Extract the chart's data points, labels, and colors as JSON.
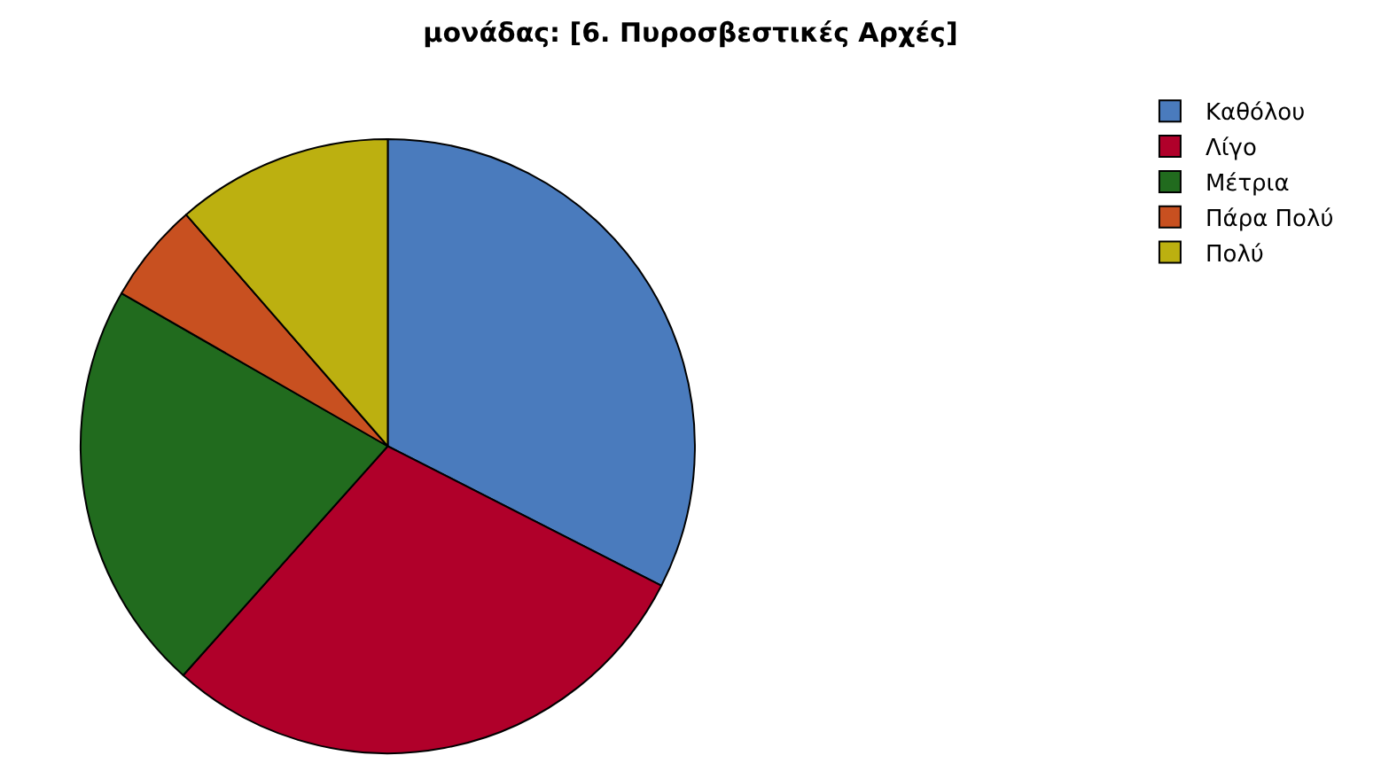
{
  "chart_data": {
    "type": "pie",
    "title": "μονάδας: [6. Πυροσβεστικές Αρχές]",
    "categories": [
      "Καθόλου",
      "Λίγο",
      "Μέτρια",
      "Πάρα Πολύ",
      "Πολύ"
    ],
    "values": [
      32.5,
      29.1,
      21.7,
      5.3,
      11.4
    ],
    "colors": [
      "#4a7bbd",
      "#b0002a",
      "#216b1e",
      "#c85020",
      "#bcb010"
    ],
    "legend": "top right"
  }
}
